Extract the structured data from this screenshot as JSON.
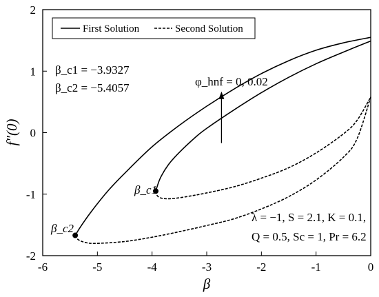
{
  "chart_data": {
    "type": "line",
    "xlabel": "β",
    "ylabel": "f″(0)",
    "xlim": [
      -6,
      0
    ],
    "ylim": [
      -2,
      2
    ],
    "x_ticks": [
      -6,
      -5,
      -4,
      -3,
      -2,
      -1,
      0
    ],
    "y_ticks": [
      -2,
      -1,
      0,
      1,
      2
    ],
    "x_tick_labels": [
      "-6",
      "-5",
      "-4",
      "-3",
      "-2",
      "-1",
      "0"
    ],
    "y_tick_labels": [
      "-2",
      "-1",
      "0",
      "1",
      "2"
    ],
    "grid": false,
    "legend": {
      "position": "top",
      "entries": [
        {
          "label": "First Solution",
          "style": "solid"
        },
        {
          "label": "Second Solution",
          "style": "dashed"
        }
      ]
    },
    "annotations": {
      "beta_c1_value": "β_c1 = −3.9327",
      "beta_c2_value": "β_c2 = −5.4057",
      "phi_label": "φ_hnf = 0, 0.02",
      "params_line1": "λ = −1, S = 2.1, K = 0.1,",
      "params_line2": "Q = 0.5, Sc = 1, Pr = 6.2",
      "point_c1_label": "β_c1",
      "point_c2_label": "β_c2"
    },
    "critical_points": [
      {
        "name": "β_c1",
        "x": -3.9327,
        "y": -0.95
      },
      {
        "name": "β_c2",
        "x": -5.4057,
        "y": -1.67
      }
    ],
    "arrow": {
      "x": -2.73,
      "y_from": -0.17,
      "y_to": 0.67
    },
    "series": [
      {
        "name": "First Solution",
        "style": "solid",
        "points": [
          [
            -3.9327,
            -0.95
          ],
          [
            -3.85,
            -0.74
          ],
          [
            -3.7,
            -0.52
          ],
          [
            -3.5,
            -0.32
          ],
          [
            -3.2,
            -0.07
          ],
          [
            -3.0,
            0.07
          ],
          [
            -2.5,
            0.37
          ],
          [
            -2.0,
            0.65
          ],
          [
            -1.5,
            0.9
          ],
          [
            -1.0,
            1.12
          ],
          [
            -0.5,
            1.31
          ],
          [
            0,
            1.49
          ]
        ]
      },
      {
        "name": "First Solution",
        "style": "solid",
        "points": [
          [
            -5.4057,
            -1.67
          ],
          [
            -5.3,
            -1.52
          ],
          [
            -5.1,
            -1.27
          ],
          [
            -4.8,
            -0.94
          ],
          [
            -4.5,
            -0.66
          ],
          [
            -4.0,
            -0.23
          ],
          [
            -3.5,
            0.12
          ],
          [
            -3.0,
            0.43
          ],
          [
            -2.5,
            0.71
          ],
          [
            -2.0,
            0.96
          ],
          [
            -1.5,
            1.17
          ],
          [
            -1.0,
            1.34
          ],
          [
            -0.5,
            1.46
          ],
          [
            0,
            1.55
          ]
        ]
      },
      {
        "name": "Second Solution",
        "style": "dashed",
        "points": [
          [
            -3.9327,
            -0.95
          ],
          [
            -3.9,
            -1.03
          ],
          [
            -3.8,
            -1.07
          ],
          [
            -3.6,
            -1.07
          ],
          [
            -3.3,
            -1.03
          ],
          [
            -3.0,
            -0.98
          ],
          [
            -2.5,
            -0.88
          ],
          [
            -2.0,
            -0.74
          ],
          [
            -1.5,
            -0.57
          ],
          [
            -1.0,
            -0.33
          ],
          [
            -0.5,
            -0.02
          ],
          [
            -0.25,
            0.2
          ],
          [
            0,
            0.58
          ]
        ]
      },
      {
        "name": "Second Solution",
        "style": "dashed",
        "points": [
          [
            -5.4057,
            -1.67
          ],
          [
            -5.35,
            -1.74
          ],
          [
            -5.2,
            -1.79
          ],
          [
            -5.0,
            -1.8
          ],
          [
            -4.5,
            -1.77
          ],
          [
            -4.0,
            -1.7
          ],
          [
            -3.5,
            -1.61
          ],
          [
            -3.0,
            -1.51
          ],
          [
            -2.5,
            -1.4
          ],
          [
            -2.0,
            -1.24
          ],
          [
            -1.5,
            -1.04
          ],
          [
            -1.0,
            -0.77
          ],
          [
            -0.5,
            -0.4
          ],
          [
            -0.25,
            -0.1
          ],
          [
            0,
            0.58
          ]
        ]
      }
    ]
  }
}
